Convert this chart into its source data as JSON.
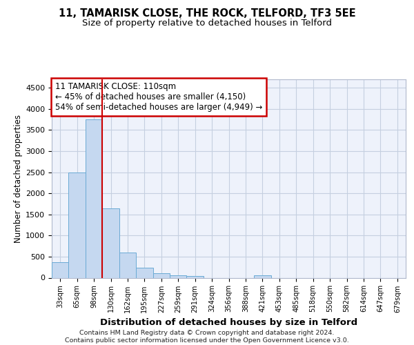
{
  "title1": "11, TAMARISK CLOSE, THE ROCK, TELFORD, TF3 5EE",
  "title2": "Size of property relative to detached houses in Telford",
  "xlabel": "Distribution of detached houses by size in Telford",
  "ylabel": "Number of detached properties",
  "categories": [
    "33sqm",
    "65sqm",
    "98sqm",
    "130sqm",
    "162sqm",
    "195sqm",
    "227sqm",
    "259sqm",
    "291sqm",
    "324sqm",
    "356sqm",
    "388sqm",
    "421sqm",
    "453sqm",
    "485sqm",
    "518sqm",
    "550sqm",
    "582sqm",
    "614sqm",
    "647sqm",
    "679sqm"
  ],
  "values": [
    375,
    2500,
    3750,
    1650,
    590,
    230,
    105,
    65,
    35,
    0,
    0,
    0,
    55,
    0,
    0,
    0,
    0,
    0,
    0,
    0,
    0
  ],
  "bar_color": "#c5d8f0",
  "bar_edge_color": "#6aaad4",
  "property_line_x": 2.5,
  "annotation_text": "11 TAMARISK CLOSE: 110sqm\n← 45% of detached houses are smaller (4,150)\n54% of semi-detached houses are larger (4,949) →",
  "annotation_box_color": "white",
  "annotation_box_edge_color": "#cc0000",
  "ylim": [
    0,
    4700
  ],
  "yticks": [
    0,
    500,
    1000,
    1500,
    2000,
    2500,
    3000,
    3500,
    4000,
    4500
  ],
  "red_line_color": "#cc0000",
  "footer_text": "Contains HM Land Registry data © Crown copyright and database right 2024.\nContains public sector information licensed under the Open Government Licence v3.0.",
  "bg_color": "#eef2fb",
  "grid_color": "#c5cfe0",
  "title1_fontsize": 10.5,
  "title2_fontsize": 9.5,
  "annotation_fontsize": 8.5,
  "xlabel_fontsize": 9.5,
  "ylabel_fontsize": 8.5
}
